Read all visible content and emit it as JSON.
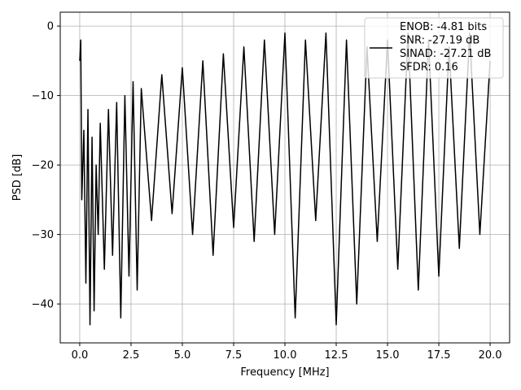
{
  "chart_data": {
    "type": "line",
    "title": "",
    "xlabel": "Frequency [MHz]",
    "ylabel": "PSD [dB]",
    "xlim": [
      -0.95,
      20.95
    ],
    "ylim": [
      -45.6,
      2.0
    ],
    "x_ticks": [
      0.0,
      2.5,
      5.0,
      7.5,
      10.0,
      12.5,
      15.0,
      17.5,
      20.0
    ],
    "x_tick_labels": [
      "0.0",
      "2.5",
      "5.0",
      "7.5",
      "10.0",
      "12.5",
      "15.0",
      "17.5",
      "20.0"
    ],
    "y_ticks": [
      0,
      -10,
      -20,
      -30,
      -40
    ],
    "y_tick_labels": [
      "0",
      "−10",
      "−20",
      "−30",
      "−40"
    ],
    "grid": true,
    "legend_position": "top-right",
    "series": [
      {
        "name": "ENOB: -4.81 bits\nSNR: -27.19 dB\nSINAD: -27.21 dB\nSFDR: 0.16",
        "color": "#000000",
        "x": [
          0.0,
          0.05,
          0.1,
          0.2,
          0.3,
          0.4,
          0.5,
          0.6,
          0.7,
          0.8,
          0.9,
          1.0,
          1.2,
          1.4,
          1.6,
          1.8,
          2.0,
          2.2,
          2.4,
          2.6,
          2.8,
          3.0,
          3.5,
          4.0,
          4.5,
          5.0,
          5.5,
          6.0,
          6.5,
          7.0,
          7.5,
          8.0,
          8.5,
          9.0,
          9.5,
          10.0,
          10.5,
          11.0,
          11.5,
          12.0,
          12.5,
          13.0,
          13.5,
          14.0,
          14.5,
          15.0,
          15.5,
          16.0,
          16.5,
          17.0,
          17.5,
          18.0,
          18.5,
          19.0,
          19.5,
          20.0
        ],
        "y": [
          -5,
          -2,
          -25,
          -15,
          -37,
          -12,
          -43,
          -16,
          -41,
          -20,
          -30,
          -14,
          -35,
          -12,
          -33,
          -11,
          -42,
          -10,
          -36,
          -8,
          -38,
          -9,
          -28,
          -7,
          -27,
          -6,
          -30,
          -5,
          -33,
          -4,
          -29,
          -3,
          -31,
          -2,
          -30,
          -1,
          -42,
          -2,
          -28,
          -1,
          -43,
          -2,
          -40,
          -3,
          -31,
          -2,
          -35,
          -1,
          -38,
          -2,
          -36,
          -3,
          -32,
          -1,
          -30,
          -5
        ]
      }
    ]
  }
}
